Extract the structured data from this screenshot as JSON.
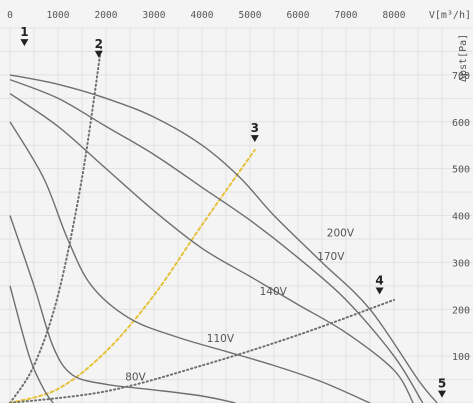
{
  "chart_data": {
    "type": "line",
    "xlabel": "V[m³/h]",
    "ylabel": "Δpst[Pa]",
    "xlim": [
      0,
      9000
    ],
    "ylim": [
      0,
      800
    ],
    "x_ticks": [
      "0",
      "1000",
      "2000",
      "3000",
      "4000",
      "5000",
      "6000",
      "7000",
      "8000"
    ],
    "y_ticks": [
      "100",
      "200",
      "300",
      "400",
      "500",
      "600",
      "700"
    ],
    "grid": true,
    "series": [
      {
        "name": "200V",
        "points": [
          [
            0,
            700
          ],
          [
            1000,
            680
          ],
          [
            2000,
            650
          ],
          [
            3000,
            610
          ],
          [
            4000,
            550
          ],
          [
            4800,
            480
          ],
          [
            5500,
            400
          ],
          [
            6500,
            300
          ],
          [
            7500,
            200
          ],
          [
            8500,
            50
          ],
          [
            8900,
            0
          ]
        ]
      },
      {
        "name": "170V",
        "points": [
          [
            0,
            690
          ],
          [
            1000,
            650
          ],
          [
            2000,
            590
          ],
          [
            3000,
            530
          ],
          [
            4000,
            460
          ],
          [
            5000,
            390
          ],
          [
            6000,
            310
          ],
          [
            7000,
            220
          ],
          [
            8000,
            100
          ],
          [
            8600,
            0
          ]
        ]
      },
      {
        "name": "140V",
        "points": [
          [
            0,
            660
          ],
          [
            1000,
            590
          ],
          [
            2000,
            500
          ],
          [
            3000,
            410
          ],
          [
            4000,
            330
          ],
          [
            5000,
            270
          ],
          [
            6000,
            210
          ],
          [
            7000,
            150
          ],
          [
            8000,
            70
          ],
          [
            8400,
            0
          ]
        ]
      },
      {
        "name": "110V",
        "points": [
          [
            0,
            600
          ],
          [
            700,
            480
          ],
          [
            1200,
            350
          ],
          [
            1700,
            250
          ],
          [
            2500,
            180
          ],
          [
            3500,
            140
          ],
          [
            4500,
            110
          ],
          [
            5500,
            80
          ],
          [
            6500,
            45
          ],
          [
            7500,
            0
          ]
        ]
      },
      {
        "name": "80V",
        "points": [
          [
            0,
            400
          ],
          [
            500,
            250
          ],
          [
            900,
            120
          ],
          [
            1300,
            60
          ],
          [
            2000,
            40
          ],
          [
            3000,
            28
          ],
          [
            4000,
            15
          ],
          [
            4700,
            0
          ]
        ]
      },
      {
        "name": "",
        "points": [
          [
            0,
            250
          ],
          [
            400,
            100
          ],
          [
            700,
            30
          ],
          [
            900,
            0
          ]
        ]
      }
    ],
    "speed_labels": [
      {
        "text": "200V",
        "x": 6600,
        "y": 355
      },
      {
        "text": "170V",
        "x": 6400,
        "y": 305
      },
      {
        "text": "140V",
        "x": 5200,
        "y": 230
      },
      {
        "text": "110V",
        "x": 4100,
        "y": 130
      },
      {
        "text": "80V",
        "x": 2400,
        "y": 48
      }
    ],
    "system_curves": [
      {
        "name": "2",
        "color": "#6f6f6f",
        "dash": "dotted",
        "points": [
          [
            0,
            0
          ],
          [
            500,
            80
          ],
          [
            1000,
            230
          ],
          [
            1500,
            480
          ],
          [
            1900,
            760
          ]
        ]
      },
      {
        "name": "3",
        "color": "#e6c23a",
        "dash": "dashed",
        "points": [
          [
            0,
            0
          ],
          [
            1000,
            30
          ],
          [
            2000,
            110
          ],
          [
            3000,
            230
          ],
          [
            4000,
            380
          ],
          [
            5100,
            540
          ]
        ]
      },
      {
        "name": "4",
        "color": "#6f6f6f",
        "dash": "dotted",
        "points": [
          [
            0,
            0
          ],
          [
            2000,
            25
          ],
          [
            4000,
            80
          ],
          [
            6000,
            145
          ],
          [
            8000,
            220
          ]
        ]
      }
    ],
    "markers": [
      {
        "label": "1",
        "x": 300,
        "y": 770
      },
      {
        "label": "2",
        "x": 1850,
        "y": 745
      },
      {
        "label": "3",
        "x": 5100,
        "y": 565
      },
      {
        "label": "4",
        "x": 7700,
        "y": 240
      },
      {
        "label": "5",
        "x": 9000,
        "y": 20
      }
    ]
  }
}
